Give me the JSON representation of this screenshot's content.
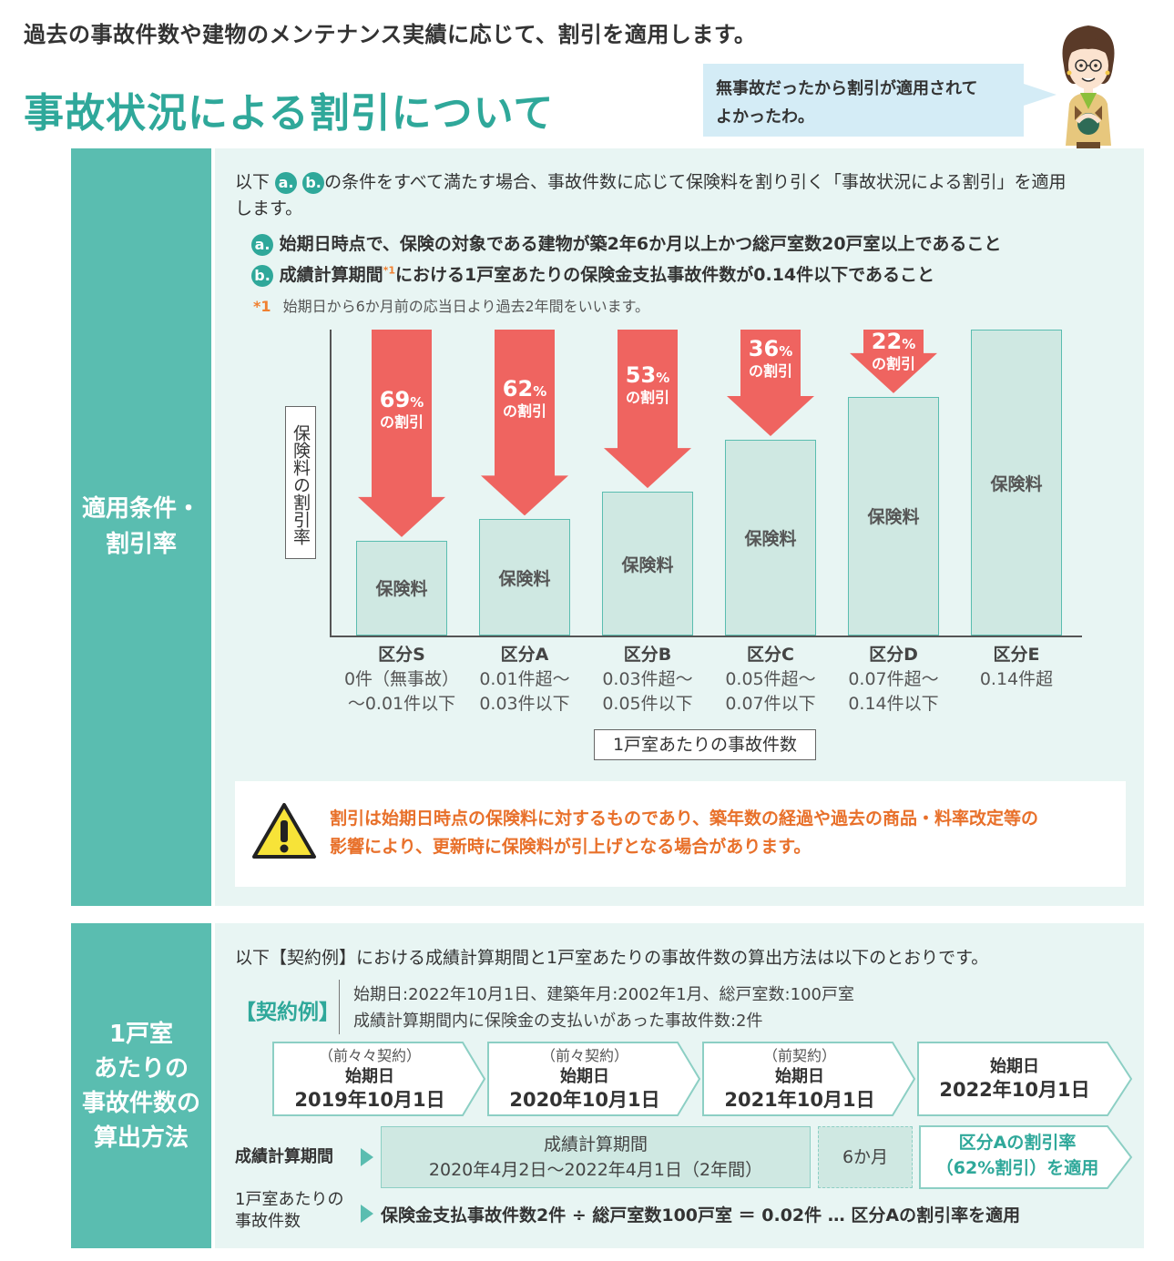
{
  "header": {
    "intro": "過去の事故件数や建物のメンテナンス実績に応じて、割引を適用します。",
    "title": "事故状況による割引について",
    "bubble_line1": "無事故だったから割引が適用されて",
    "bubble_line2": "よかったわ。"
  },
  "section1": {
    "side_line1": "適用条件・",
    "side_line2": "割引率",
    "lead_pre": "以下",
    "lead_post": "の条件をすべて満たす場合、事故件数に応じて保険料を割り引く「事故状況による割引」を適用",
    "lead_line2": "します。",
    "badge_a": "a.",
    "badge_b": "b.",
    "cond_a": "始期日時点で、保険の対象である建物が築2年6か月以上かつ総戸室数20戸室以上であること",
    "cond_b_pre": "成績計算期間",
    "cond_b_mark": "*1",
    "cond_b_post": "における1戸室あたりの保険金支払事故件数が0.14件以下であること",
    "note_mark": "*1",
    "note_text": "始期日から6か月前の応当日より過去2年間をいいます。",
    "warning_line1": "割引は始期日時点の保険料に対するものであり、築年数の経過や過去の商品・料率改定等の",
    "warning_line2": "影響により、更新時に保険料が引上げとなる場合があります。"
  },
  "chart_data": {
    "type": "bar",
    "ylabel": "保険料の割引率",
    "xlabel": "1戸室あたりの事故件数",
    "bar_label": "保険料",
    "percent_sign": "%",
    "discount_suffix": "の割引",
    "categories": [
      {
        "name": "区分S",
        "range1": "0件（無事故）",
        "range2": "〜0.01件以下",
        "discount": 69
      },
      {
        "name": "区分A",
        "range1": "0.01件超〜",
        "range2": "0.03件以下",
        "discount": 62
      },
      {
        "name": "区分B",
        "range1": "0.03件超〜",
        "range2": "0.05件以下",
        "discount": 53
      },
      {
        "name": "区分C",
        "range1": "0.05件超〜",
        "range2": "0.07件以下",
        "discount": 36
      },
      {
        "name": "区分D",
        "range1": "0.07件超〜",
        "range2": "0.14件以下",
        "discount": 22
      },
      {
        "name": "区分E",
        "range1": "0.14件超",
        "range2": "",
        "discount": 0
      }
    ]
  },
  "section2": {
    "side_lines": [
      "1戸室",
      "あたりの",
      "事故件数の",
      "算出方法"
    ],
    "lead": "以下【契約例】における成績計算期間と1戸室あたりの事故件数の算出方法は以下のとおりです。",
    "example_label": "【契約例】",
    "example_line1": "始期日:2022年10月1日、建築年月:2002年1月、総戸室数:100戸室",
    "example_line2": "成績計算期間内に保険金の支払いがあった事故件数:2件",
    "steps": [
      {
        "tag": "（前々々契約）",
        "label": "始期日",
        "date": "2019年10月1日"
      },
      {
        "tag": "（前々契約）",
        "label": "始期日",
        "date": "2020年10月1日"
      },
      {
        "tag": "（前契約）",
        "label": "始期日",
        "date": "2021年10月1日"
      },
      {
        "tag": "",
        "label": "始期日",
        "date": "2022年10月1日"
      }
    ],
    "period_row_label": "成績計算期間",
    "period_title": "成績計算期間",
    "period_range": "2020年4月2日〜2022年4月1日（2年間）",
    "six_months": "6か月",
    "result_line1": "区分Aの割引率",
    "result_line2": "（62%割引）を適用",
    "count_label_line1": "1戸室あたりの",
    "count_label_line2": "事故件数",
    "calc_text": "保険金支払事故件数2件 ÷ 総戸室数100戸室 ＝ 0.02件 … 区分Aの割引率を適用"
  },
  "colors": {
    "teal": "#2fa89a",
    "side": "#5abdb0",
    "panel": "#e8f5f3",
    "bar": "#cfe8e2",
    "arrow": "#ef6460",
    "warning": "#e8702a"
  }
}
